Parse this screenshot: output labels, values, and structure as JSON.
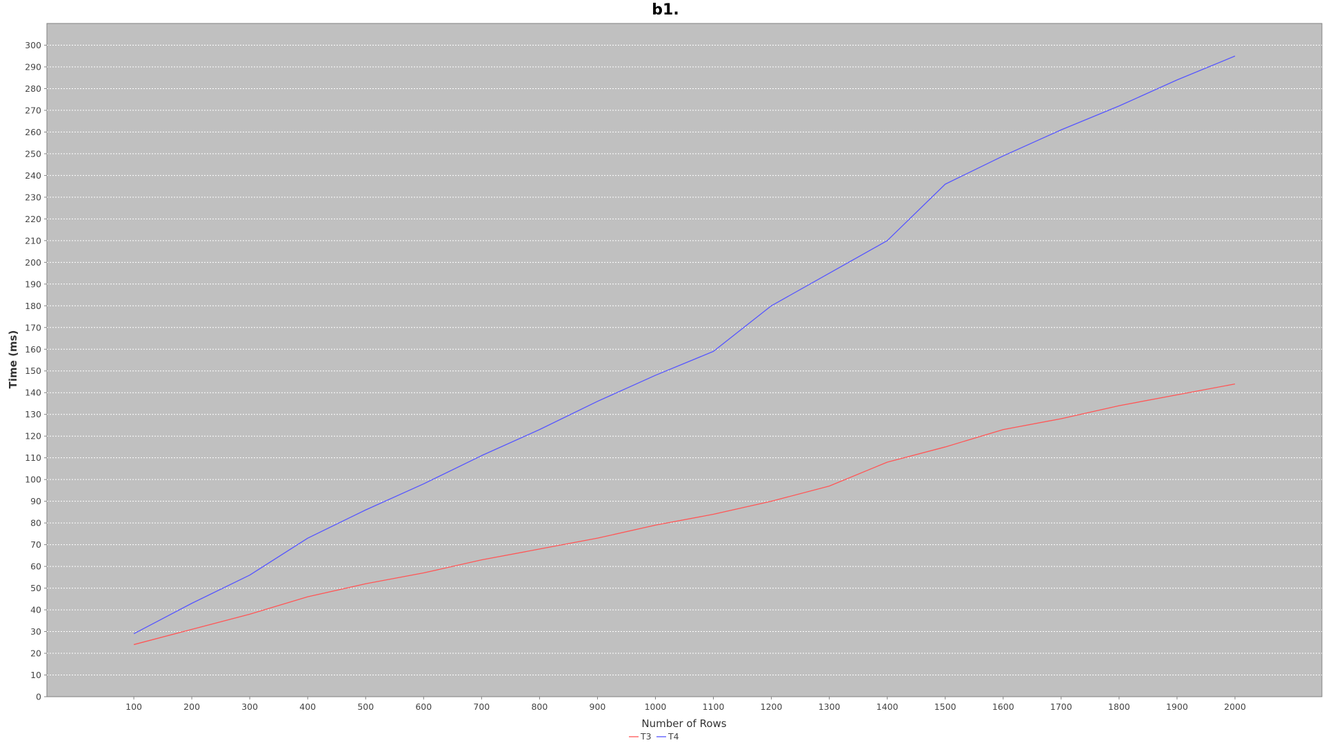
{
  "chart_data": {
    "type": "line",
    "title": "b1.",
    "xlabel": "Number of Rows",
    "ylabel": "Time (ms)",
    "x": [
      100,
      200,
      300,
      400,
      500,
      600,
      700,
      800,
      900,
      1000,
      1100,
      1200,
      1300,
      1400,
      1500,
      1600,
      1700,
      1800,
      1900,
      2000
    ],
    "x_ticks": [
      "100",
      "200",
      "300",
      "400",
      "500",
      "600",
      "700",
      "800",
      "900",
      "1000",
      "1100",
      "1200",
      "1300",
      "1400",
      "1500",
      "1600",
      "1700",
      "1800",
      "1900",
      "2000"
    ],
    "xlim": [
      -50,
      2150
    ],
    "ylim": [
      0,
      310
    ],
    "y_ticks": [
      "0",
      "10",
      "20",
      "30",
      "40",
      "50",
      "60",
      "70",
      "80",
      "90",
      "100",
      "110",
      "120",
      "130",
      "140",
      "150",
      "160",
      "170",
      "180",
      "190",
      "200",
      "210",
      "220",
      "230",
      "240",
      "250",
      "260",
      "270",
      "280",
      "290",
      "300"
    ],
    "grid": true,
    "legend_position": "bottom-center",
    "plot_background": "#c0c0c0",
    "series": [
      {
        "name": "T3",
        "color": "#ff5555",
        "values": [
          24,
          31,
          38,
          46,
          52,
          57,
          63,
          68,
          73,
          79,
          84,
          90,
          97,
          108,
          115,
          123,
          128,
          134,
          139,
          144
        ]
      },
      {
        "name": "T4",
        "color": "#5555ff",
        "values": [
          29,
          43,
          56,
          73,
          86,
          98,
          111,
          123,
          136,
          148,
          159,
          180,
          195,
          210,
          236,
          249,
          261,
          272,
          284,
          295
        ]
      }
    ]
  }
}
